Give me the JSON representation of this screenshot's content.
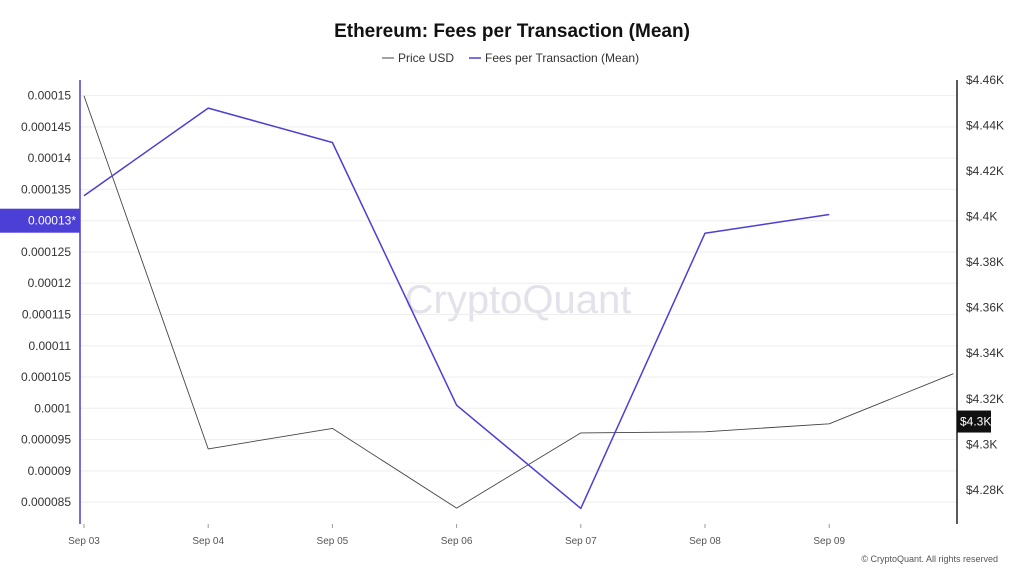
{
  "title": "Ethereum: Fees per Transaction (Mean)",
  "watermark": "CryptoQuant",
  "copyright": "© CryptoQuant. All rights reserved",
  "colors": {
    "fees": "#4b3fd6",
    "price": "#444444",
    "grid": "#eeeeee",
    "axis": "#222222"
  },
  "chart_data": {
    "type": "line",
    "title": "Ethereum: Fees per Transaction (Mean)",
    "categories": [
      "Sep 03",
      "Sep 04",
      "Sep 05",
      "Sep 06",
      "Sep 07",
      "Sep 08",
      "Sep 09"
    ],
    "left_ticks": [
      "0.00015",
      "0.000145",
      "0.00014",
      "0.000135",
      "0.00013",
      "0.000125",
      "0.00012",
      "0.000115",
      "0.00011",
      "0.000105",
      "0.0001",
      "0.000095",
      "0.00009",
      "0.000085"
    ],
    "left_tick_values": [
      0.00015,
      0.000145,
      0.00014,
      0.000135,
      0.00013,
      0.000125,
      0.00012,
      0.000115,
      0.00011,
      0.000105,
      0.0001,
      9.5e-05,
      9e-05,
      8.5e-05
    ],
    "left_ylim": [
      8.15e-05,
      0.0001525
    ],
    "right_ticks": [
      "$4.46K",
      "$4.44K",
      "$4.42K",
      "$4.4K",
      "$4.38K",
      "$4.36K",
      "$4.34K",
      "$4.32K",
      "$4.3K",
      "$4.28K"
    ],
    "right_tick_values": [
      4460,
      4440,
      4420,
      4400,
      4380,
      4360,
      4340,
      4320,
      4300,
      4280
    ],
    "right_ylim": [
      4265,
      4460
    ],
    "series": [
      {
        "name": "Price USD",
        "axis": "right",
        "x": [
          0,
          1,
          2,
          3,
          4,
          5,
          6,
          7
        ],
        "values": [
          4453,
          4298,
          4307,
          4272,
          4305,
          4305.5,
          4309,
          4331
        ]
      },
      {
        "name": "Fees per Transaction (Mean)",
        "axis": "left",
        "x": [
          0,
          1,
          2,
          3,
          4,
          5,
          6
        ],
        "values": [
          0.000134,
          0.000148,
          0.0001425,
          0.0001005,
          8.4e-05,
          0.000128,
          0.000131
        ]
      }
    ],
    "current_labels": {
      "left": "0.00013*",
      "right": "$4.3K"
    },
    "grid": true,
    "legend_position": "top-center"
  }
}
